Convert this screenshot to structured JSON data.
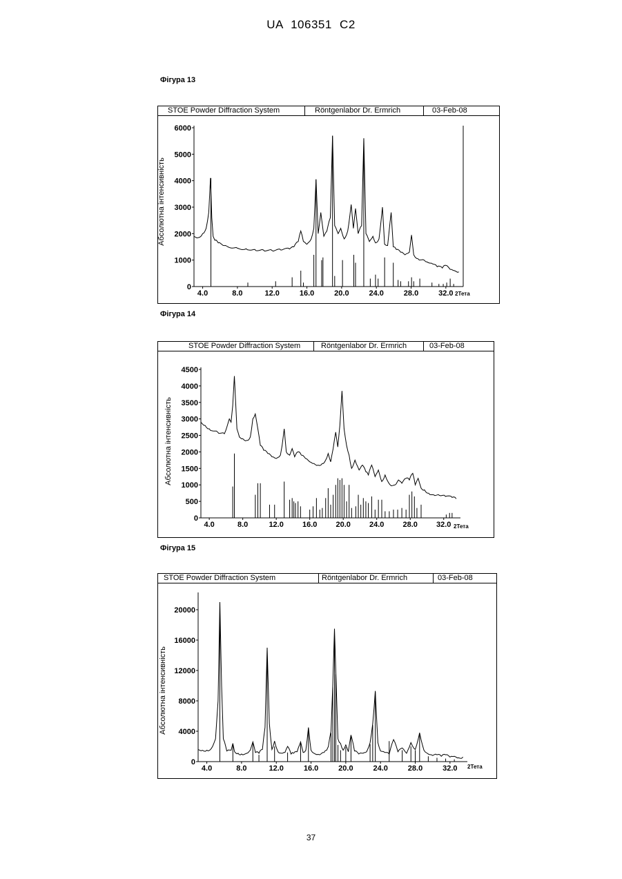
{
  "document": {
    "header": "UA 106351 C2",
    "page_number": "37"
  },
  "figures": [
    {
      "label": "Фігура 13"
    },
    {
      "label": "Фігура 14"
    },
    {
      "label": "Фігура 15"
    }
  ],
  "chart_data": [
    {
      "type": "line",
      "figure": "Фігура 13",
      "header": {
        "system": "STOE Powder Diffraction System",
        "lab": "Röntgenlabor Dr. Ermrich",
        "date": "03-Feb-08"
      },
      "xlabel": "2Тета",
      "ylabel": "Абсолютна інтенсивність",
      "xlim": [
        3.0,
        34.0
      ],
      "ylim": [
        0,
        6000
      ],
      "xticks": [
        4.0,
        8.0,
        12.0,
        16.0,
        20.0,
        24.0,
        28.0,
        32.0
      ],
      "yticks": [
        0,
        1000,
        2000,
        3000,
        4000,
        5000,
        6000
      ],
      "grid": false,
      "series": [
        {
          "style": "line",
          "x": [
            3.0,
            3.5,
            4.0,
            4.4,
            4.7,
            4.9,
            5.05,
            5.2,
            5.4,
            5.8,
            6.5,
            8.0,
            9.0,
            10.0,
            11.0,
            12.0,
            13.0,
            14.0,
            14.5,
            15.0,
            15.3,
            15.6,
            16.0,
            16.5,
            16.8,
            17.05,
            17.3,
            17.6,
            17.95,
            18.3,
            18.7,
            18.95,
            19.2,
            19.6,
            19.9,
            20.3,
            20.7,
            21.1,
            21.35,
            21.6,
            21.9,
            22.3,
            22.55,
            22.8,
            23.2,
            23.6,
            23.9,
            24.3,
            24.7,
            24.95,
            25.3,
            25.7,
            25.95,
            26.3,
            26.8,
            27.3,
            27.8,
            28.05,
            28.3,
            28.8,
            29.5,
            30.0,
            30.5,
            31.0,
            31.6,
            32.0,
            32.5,
            33.0,
            33.5
          ],
          "y": [
            1900,
            1850,
            2000,
            2200,
            2800,
            4100,
            2600,
            1900,
            1750,
            1650,
            1550,
            1450,
            1430,
            1400,
            1380,
            1360,
            1380,
            1420,
            1500,
            1700,
            2100,
            1700,
            1600,
            1800,
            2200,
            4050,
            2000,
            2800,
            1900,
            2100,
            2600,
            5700,
            2300,
            2000,
            2200,
            1800,
            2100,
            3100,
            2200,
            2950,
            2000,
            2300,
            5600,
            2000,
            1700,
            1900,
            1650,
            1800,
            3000,
            1600,
            1550,
            2800,
            1500,
            1400,
            1300,
            1200,
            1300,
            1950,
            1200,
            1050,
            1000,
            900,
            850,
            750,
            700,
            800,
            650,
            600,
            550
          ]
        },
        {
          "style": "sticks",
          "x": [
            4.95,
            9.2,
            12.4,
            14.3,
            15.3,
            15.6,
            16.8,
            17.05,
            17.7,
            17.85,
            18.95,
            19.2,
            20.1,
            21.4,
            21.6,
            22.55,
            23.3,
            23.9,
            24.2,
            24.95,
            25.95,
            26.5,
            26.8,
            27.7,
            28.05,
            28.3,
            29.0,
            30.4,
            31.2,
            31.7,
            32.1,
            32.5,
            32.9
          ],
          "y": [
            4100,
            150,
            200,
            350,
            600,
            150,
            1200,
            4050,
            1000,
            1100,
            5700,
            400,
            1000,
            1200,
            900,
            5600,
            300,
            450,
            300,
            1100,
            900,
            250,
            200,
            200,
            350,
            200,
            300,
            150,
            100,
            100,
            150,
            300,
            100
          ]
        }
      ]
    },
    {
      "type": "line",
      "figure": "Фігура 14",
      "header": {
        "system": "STOE Powder Diffraction System",
        "lab": "Röntgenlabor Dr. Ermrich",
        "date": "03-Feb-08"
      },
      "xlabel": "2Тета",
      "ylabel": "Абсолютна інтенсивність",
      "xlim": [
        3.0,
        34.0
      ],
      "ylim": [
        0,
        4500
      ],
      "xticks": [
        4.0,
        8.0,
        12.0,
        16.0,
        20.0,
        24.0,
        28.0,
        32.0
      ],
      "yticks": [
        0,
        500,
        1000,
        1500,
        2000,
        2500,
        3000,
        3500,
        4000,
        4500
      ],
      "grid": false,
      "series": [
        {
          "style": "line",
          "x": [
            3.0,
            3.5,
            4.0,
            5.0,
            5.8,
            6.1,
            6.4,
            6.6,
            6.8,
            7.0,
            7.3,
            7.6,
            8.0,
            8.5,
            8.9,
            9.2,
            9.5,
            9.8,
            10.1,
            10.5,
            11.0,
            11.5,
            12.0,
            12.5,
            12.7,
            12.95,
            13.2,
            13.6,
            13.9,
            14.2,
            14.6,
            15.0,
            15.5,
            16.0,
            16.5,
            17.0,
            17.5,
            17.9,
            18.2,
            18.5,
            18.8,
            19.1,
            19.35,
            19.6,
            19.85,
            20.1,
            20.4,
            20.7,
            21.0,
            21.4,
            21.9,
            22.3,
            22.7,
            23.0,
            23.4,
            23.8,
            24.2,
            24.6,
            25.0,
            25.6,
            26.2,
            26.6,
            27.0,
            27.5,
            27.9,
            28.3,
            28.6,
            28.95,
            29.3,
            29.7,
            30.2,
            30.8,
            31.5,
            32.2,
            33.0,
            33.5
          ],
          "y": [
            2900,
            2800,
            2700,
            2600,
            2550,
            2750,
            3000,
            2900,
            3400,
            4300,
            2700,
            2450,
            2400,
            2350,
            2450,
            3000,
            3150,
            2700,
            2200,
            2050,
            1950,
            1850,
            1800,
            1900,
            2200,
            2700,
            2000,
            1900,
            2100,
            1850,
            2000,
            1900,
            1800,
            1700,
            1650,
            1600,
            1650,
            1750,
            1950,
            1700,
            2100,
            2600,
            2150,
            2800,
            3850,
            2700,
            2200,
            1900,
            1500,
            1750,
            1450,
            1600,
            1400,
            1300,
            1600,
            1250,
            1450,
            1100,
            1300,
            1000,
            1000,
            1150,
            1050,
            1200,
            1150,
            1350,
            1000,
            1200,
            900,
            850,
            750,
            700,
            680,
            650,
            620,
            580
          ]
        },
        {
          "style": "sticks",
          "x": [
            6.8,
            7.0,
            9.5,
            9.8,
            10.1,
            11.2,
            11.8,
            12.95,
            13.6,
            13.9,
            14.1,
            14.3,
            14.6,
            14.9,
            16.0,
            16.4,
            16.8,
            17.2,
            17.5,
            17.9,
            18.2,
            18.5,
            18.8,
            19.1,
            19.35,
            19.6,
            19.85,
            20.1,
            20.4,
            20.7,
            21.0,
            21.5,
            21.8,
            22.1,
            22.4,
            22.7,
            23.0,
            23.4,
            23.8,
            24.2,
            24.6,
            25.0,
            25.5,
            26.0,
            26.5,
            27.0,
            27.5,
            27.9,
            28.2,
            28.5,
            28.8,
            29.3,
            32.3,
            32.7,
            33.0
          ],
          "y": [
            950,
            1950,
            700,
            1050,
            1050,
            400,
            400,
            1100,
            550,
            600,
            500,
            450,
            500,
            350,
            250,
            350,
            600,
            250,
            300,
            600,
            900,
            400,
            700,
            1000,
            1200,
            1150,
            1200,
            1000,
            500,
            1000,
            300,
            350,
            700,
            400,
            600,
            500,
            450,
            650,
            250,
            550,
            550,
            200,
            200,
            250,
            250,
            300,
            250,
            700,
            800,
            650,
            300,
            400,
            100,
            150,
            150
          ]
        }
      ]
    },
    {
      "type": "line",
      "figure": "Фігура 15",
      "header": {
        "system": "STOE Powder Diffraction System",
        "lab": "Röntgenlabor Dr. Ermrich",
        "date": "03-Feb-08"
      },
      "xlabel": "2Тета",
      "ylabel": "Абсолютна інтенсивність",
      "xlim": [
        3.0,
        34.0
      ],
      "ylim": [
        0,
        22000
      ],
      "xticks": [
        4.0,
        8.0,
        12.0,
        16.0,
        20.0,
        24.0,
        28.0,
        32.0
      ],
      "yticks": [
        0,
        4000,
        8000,
        12000,
        16000,
        20000
      ],
      "grid": false,
      "series": [
        {
          "style": "line",
          "x": [
            3.0,
            3.5,
            4.0,
            4.5,
            5.0,
            5.3,
            5.5,
            5.7,
            5.9,
            6.3,
            6.8,
            7.0,
            7.2,
            7.6,
            8.0,
            8.6,
            9.0,
            9.3,
            9.6,
            10.0,
            10.4,
            10.7,
            10.95,
            11.2,
            11.5,
            11.8,
            12.2,
            12.6,
            13.0,
            13.3,
            13.7,
            14.0,
            14.4,
            14.8,
            15.1,
            15.4,
            15.7,
            16.0,
            16.5,
            17.0,
            17.5,
            17.8,
            18.0,
            18.3,
            18.5,
            18.7,
            18.85,
            19.1,
            19.4,
            19.7,
            20.0,
            20.3,
            20.6,
            21.0,
            21.5,
            22.0,
            22.4,
            22.8,
            23.1,
            23.4,
            23.7,
            24.0,
            24.5,
            25.0,
            25.5,
            26.0,
            26.5,
            27.0,
            27.5,
            28.0,
            28.5,
            29.0,
            29.5,
            30.0,
            30.5,
            31.0,
            31.5,
            32.0,
            32.5,
            33.0,
            33.5
          ],
          "y": [
            1600,
            1500,
            1500,
            1700,
            3000,
            8000,
            21000,
            10000,
            3000,
            1400,
            1500,
            2400,
            1300,
            1100,
            1000,
            1100,
            1500,
            2600,
            1200,
            1100,
            1600,
            4500,
            15000,
            5000,
            1600,
            2700,
            1300,
            1100,
            1200,
            2000,
            1000,
            1100,
            1300,
            2600,
            1200,
            1500,
            4500,
            1500,
            1000,
            900,
            1200,
            1500,
            2000,
            4000,
            10000,
            17500,
            12000,
            3000,
            2400,
            1500,
            2200,
            1300,
            3500,
            1400,
            1000,
            1100,
            1300,
            2500,
            5000,
            9300,
            2500,
            1400,
            1200,
            1000,
            2900,
            1300,
            1800,
            1100,
            2500,
            1600,
            3800,
            1500,
            1000,
            800,
            900,
            700,
            900,
            600,
            700,
            500,
            600
          ]
        },
        {
          "style": "sticks",
          "x": [
            5.5,
            7.0,
            9.3,
            10.0,
            10.95,
            11.8,
            13.3,
            14.8,
            15.7,
            18.3,
            18.5,
            18.7,
            18.85,
            19.1,
            19.4,
            20.0,
            20.6,
            22.8,
            23.1,
            23.4,
            25.0,
            26.5,
            27.5,
            28.0,
            28.5,
            29.5,
            30.5,
            31.5,
            32.5
          ],
          "y": [
            21000,
            2300,
            2400,
            900,
            15000,
            2000,
            1200,
            2400,
            4400,
            3800,
            9800,
            17500,
            11500,
            2200,
            1500,
            1900,
            3300,
            2300,
            4800,
            9200,
            2700,
            1500,
            2000,
            1500,
            3500,
            700,
            500,
            400,
            300
          ]
        }
      ]
    }
  ]
}
